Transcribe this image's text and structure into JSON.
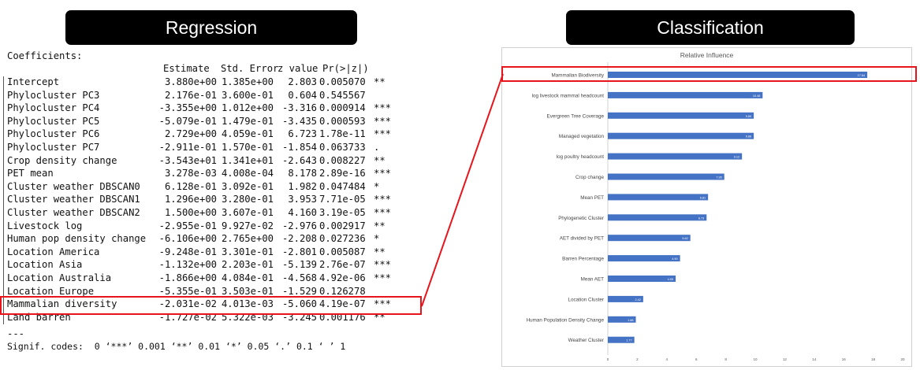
{
  "headers": {
    "regression": "Regression",
    "classification": "Classification"
  },
  "regression": {
    "coefficients_label": "Coefficients:",
    "columns": [
      "Estimate",
      "Std. Error",
      "z value",
      "Pr(>|z|)"
    ],
    "rows": [
      {
        "name": "Intercept",
        "estimate": "3.880e+00",
        "std_error": "1.385e+00",
        "z": "2.803",
        "p": "0.005070",
        "sig": "**"
      },
      {
        "name": "Phylocluster PC3",
        "estimate": "2.176e-01",
        "std_error": "3.600e-01",
        "z": "0.604",
        "p": "0.545567",
        "sig": ""
      },
      {
        "name": "Phylocluster PC4",
        "estimate": "-3.355e+00",
        "std_error": "1.012e+00",
        "z": "-3.316",
        "p": "0.000914",
        "sig": "***"
      },
      {
        "name": "Phylocluster PC5",
        "estimate": "-5.079e-01",
        "std_error": "1.479e-01",
        "z": "-3.435",
        "p": "0.000593",
        "sig": "***"
      },
      {
        "name": "Phylocluster PC6",
        "estimate": "2.729e+00",
        "std_error": "4.059e-01",
        "z": "6.723",
        "p": "1.78e-11",
        "sig": "***"
      },
      {
        "name": "Phylocluster PC7",
        "estimate": "-2.911e-01",
        "std_error": "1.570e-01",
        "z": "-1.854",
        "p": "0.063733",
        "sig": "."
      },
      {
        "name": "Crop density change",
        "estimate": "-3.543e+01",
        "std_error": "1.341e+01",
        "z": "-2.643",
        "p": "0.008227",
        "sig": "**"
      },
      {
        "name": "PET mean",
        "estimate": "3.278e-03",
        "std_error": "4.008e-04",
        "z": "8.178",
        "p": "2.89e-16",
        "sig": "***"
      },
      {
        "name": "Cluster weather DBSCAN0",
        "estimate": "6.128e-01",
        "std_error": "3.092e-01",
        "z": "1.982",
        "p": "0.047484",
        "sig": "*"
      },
      {
        "name": "Cluster weather DBSCAN1",
        "estimate": "1.296e+00",
        "std_error": "3.280e-01",
        "z": "3.953",
        "p": "7.71e-05",
        "sig": "***"
      },
      {
        "name": "Cluster weather DBSCAN2",
        "estimate": "1.500e+00",
        "std_error": "3.607e-01",
        "z": "4.160",
        "p": "3.19e-05",
        "sig": "***"
      },
      {
        "name": "Livestock log",
        "estimate": "-2.955e-01",
        "std_error": "9.927e-02",
        "z": "-2.976",
        "p": "0.002917",
        "sig": "**"
      },
      {
        "name": "Human pop density change",
        "estimate": "-6.106e+00",
        "std_error": "2.765e+00",
        "z": "-2.208",
        "p": "0.027236",
        "sig": "*"
      },
      {
        "name": "Location America",
        "estimate": "-9.248e-01",
        "std_error": "3.301e-01",
        "z": "-2.801",
        "p": "0.005087",
        "sig": "**"
      },
      {
        "name": "Location Asia",
        "estimate": "-1.132e+00",
        "std_error": "2.203e-01",
        "z": "-5.139",
        "p": "2.76e-07",
        "sig": "***"
      },
      {
        "name": "Location Australia",
        "estimate": "-1.866e+00",
        "std_error": "4.084e-01",
        "z": "-4.568",
        "p": "4.92e-06",
        "sig": "***"
      },
      {
        "name": "Location Europe",
        "estimate": "-5.355e-01",
        "std_error": "3.503e-01",
        "z": "-1.529",
        "p": "0.126278",
        "sig": ""
      },
      {
        "name": "Mammalian diversity",
        "estimate": "-2.031e-02",
        "std_error": "4.013e-03",
        "z": "-5.060",
        "p": "4.19e-07",
        "sig": "***"
      },
      {
        "name": "Land barren",
        "estimate": "-1.727e-02",
        "std_error": "5.322e-03",
        "z": "-3.245",
        "p": "0.001176",
        "sig": "**"
      }
    ],
    "separator": "---",
    "signif_codes": "Signif. codes:  0 ‘***’ 0.001 ‘**’ 0.01 ‘*’ 0.05 ‘.’ 0.1 ‘ ’ 1"
  },
  "chart_data": {
    "type": "bar",
    "orientation": "horizontal",
    "title": "Relative Influence",
    "categories": [
      "Mammalian Biodiversity",
      "log livestock mammal headcount",
      "Evergreen Tree Coverage",
      "Managed vegetation",
      "log poultry headcount",
      "Crop change",
      "Mean PET",
      "Phylogenetic Cluster",
      "AET divided by PET",
      "Barren Percentage",
      "Mean AET",
      "Location Cluster",
      "Human Population Density Change",
      "Weather Cluster"
    ],
    "values": [
      17.6,
      10.5,
      9.9,
      9.9,
      9.1,
      7.9,
      6.8,
      6.7,
      5.6,
      4.9,
      4.6,
      2.4,
      1.9,
      1.8
    ],
    "data_labels": [
      "17.64",
      "10.48",
      "9.89",
      "9.88",
      "9.12",
      "7.95",
      "6.81",
      "6.73",
      "5.62",
      "4.90",
      "4.59",
      "2.42",
      "1.88",
      "1.77"
    ],
    "xlim": [
      0,
      20
    ],
    "xticks": [
      0,
      2,
      4,
      6,
      8,
      10,
      12,
      14,
      16,
      18,
      20
    ],
    "grid": false,
    "bar_color": "#4472c4"
  },
  "highlight_color": "#e8141c"
}
